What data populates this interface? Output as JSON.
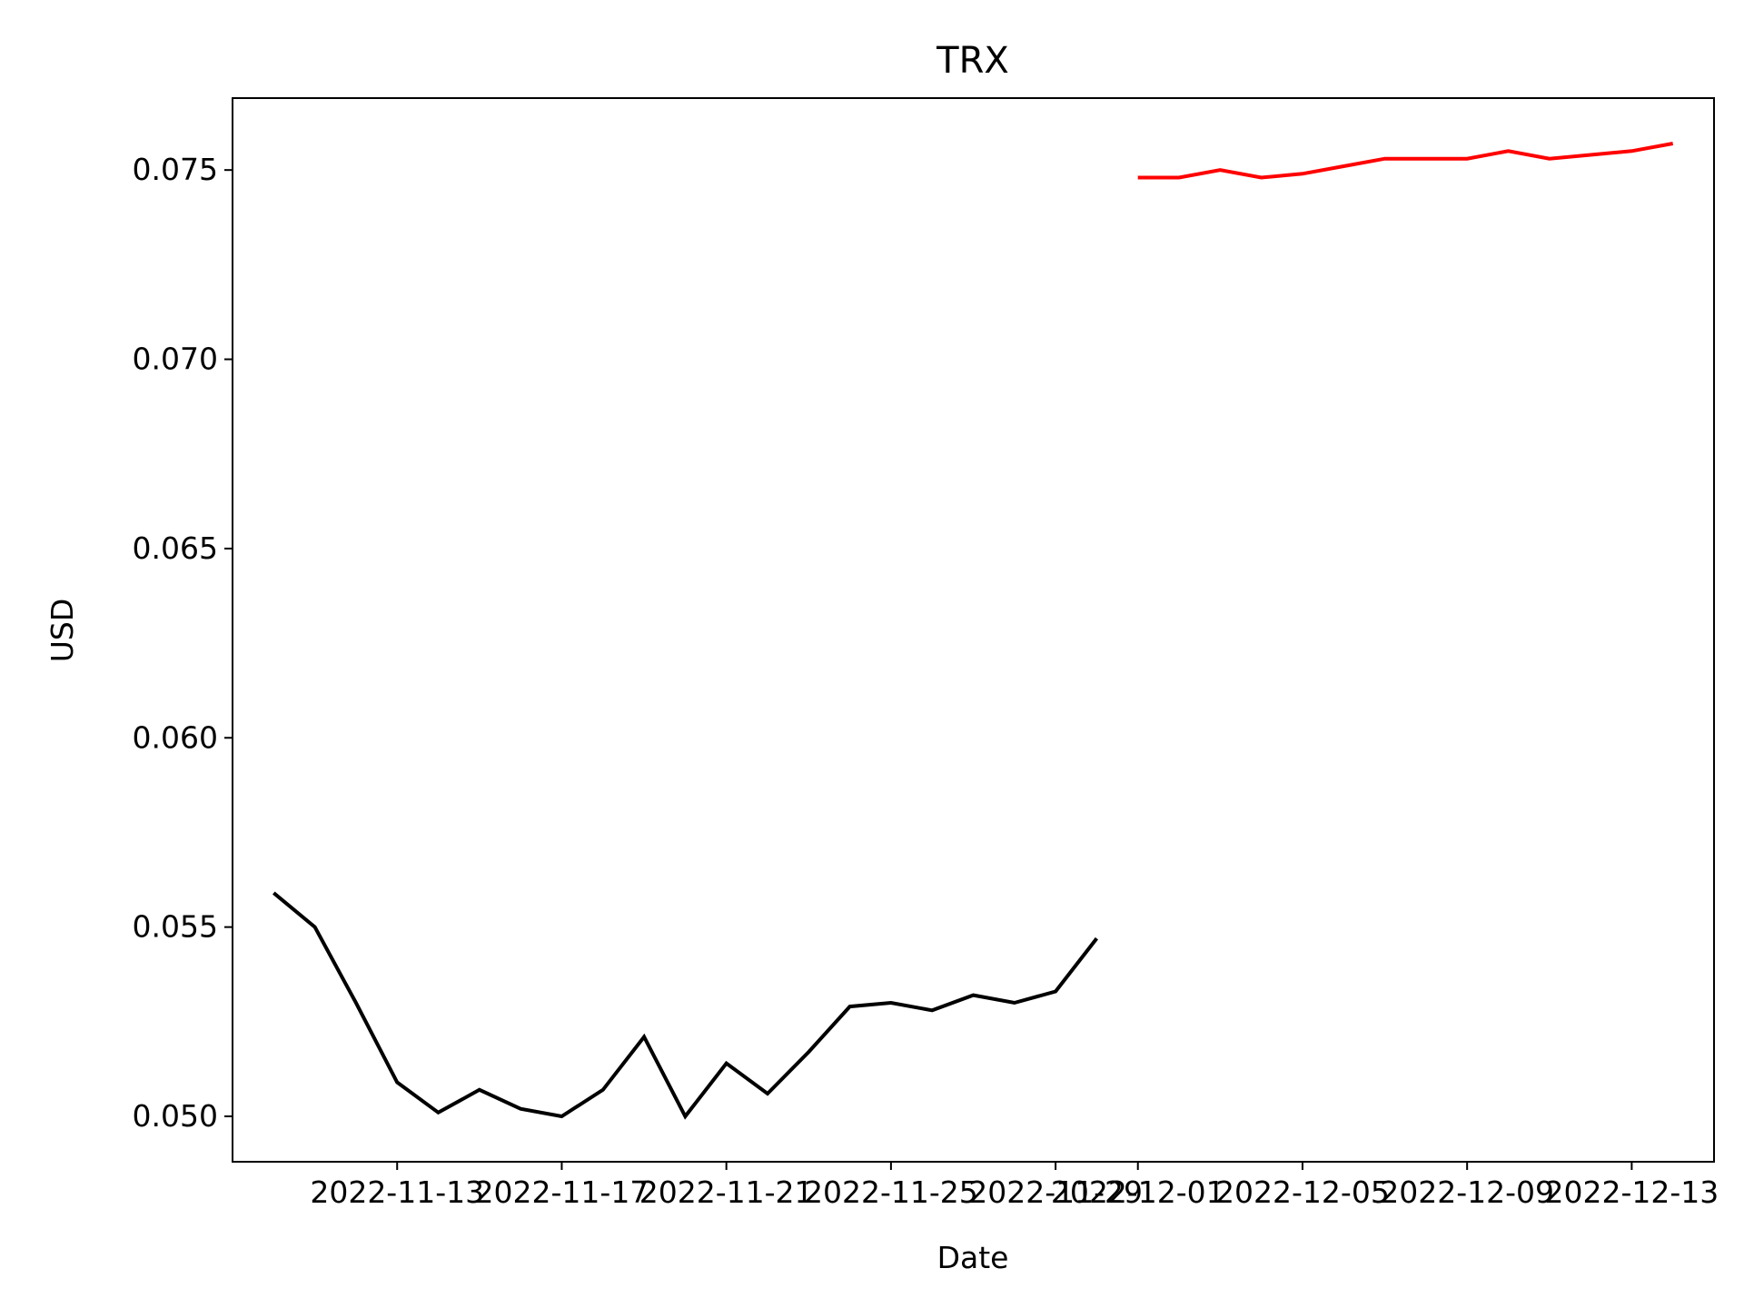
{
  "chart_data": {
    "type": "line",
    "title": "TRX",
    "xlabel": "Date",
    "ylabel": "USD",
    "grid": false,
    "legend": "none",
    "xlim": [
      "2022-11-09",
      "2022-12-15"
    ],
    "ylim": [
      0.0488,
      0.0769
    ],
    "x_ticks": [
      "2022-11-13",
      "2022-11-17",
      "2022-11-21",
      "2022-11-25",
      "2022-11-29",
      "2022-12-01",
      "2022-12-05",
      "2022-12-09",
      "2022-12-13"
    ],
    "y_ticks": [
      "0.050",
      "0.055",
      "0.060",
      "0.065",
      "0.070",
      "0.075"
    ],
    "series": [
      {
        "color": "#000000",
        "points": [
          [
            "2022-11-10",
            0.0559
          ],
          [
            "2022-11-11",
            0.055
          ],
          [
            "2022-11-12",
            0.053
          ],
          [
            "2022-11-13",
            0.0509
          ],
          [
            "2022-11-14",
            0.0501
          ],
          [
            "2022-11-15",
            0.0507
          ],
          [
            "2022-11-16",
            0.0502
          ],
          [
            "2022-11-17",
            0.05
          ],
          [
            "2022-11-18",
            0.0507
          ],
          [
            "2022-11-19",
            0.0521
          ],
          [
            "2022-11-20",
            0.05
          ],
          [
            "2022-11-21",
            0.0514
          ],
          [
            "2022-11-22",
            0.0506
          ],
          [
            "2022-11-23",
            0.0517
          ],
          [
            "2022-11-24",
            0.0529
          ],
          [
            "2022-11-25",
            0.053
          ],
          [
            "2022-11-26",
            0.0528
          ],
          [
            "2022-11-27",
            0.0532
          ],
          [
            "2022-11-28",
            0.053
          ],
          [
            "2022-11-29",
            0.0533
          ],
          [
            "2022-11-30",
            0.0547
          ]
        ]
      },
      {
        "color": "#ff0000",
        "points": [
          [
            "2022-12-01",
            0.0748
          ],
          [
            "2022-12-02",
            0.0748
          ],
          [
            "2022-12-03",
            0.075
          ],
          [
            "2022-12-04",
            0.0748
          ],
          [
            "2022-12-05",
            0.0749
          ],
          [
            "2022-12-06",
            0.0751
          ],
          [
            "2022-12-07",
            0.0753
          ],
          [
            "2022-12-08",
            0.0753
          ],
          [
            "2022-12-09",
            0.0753
          ],
          [
            "2022-12-10",
            0.0755
          ],
          [
            "2022-12-11",
            0.0753
          ],
          [
            "2022-12-12",
            0.0754
          ],
          [
            "2022-12-13",
            0.0755
          ],
          [
            "2022-12-14",
            0.0757
          ]
        ]
      }
    ]
  }
}
